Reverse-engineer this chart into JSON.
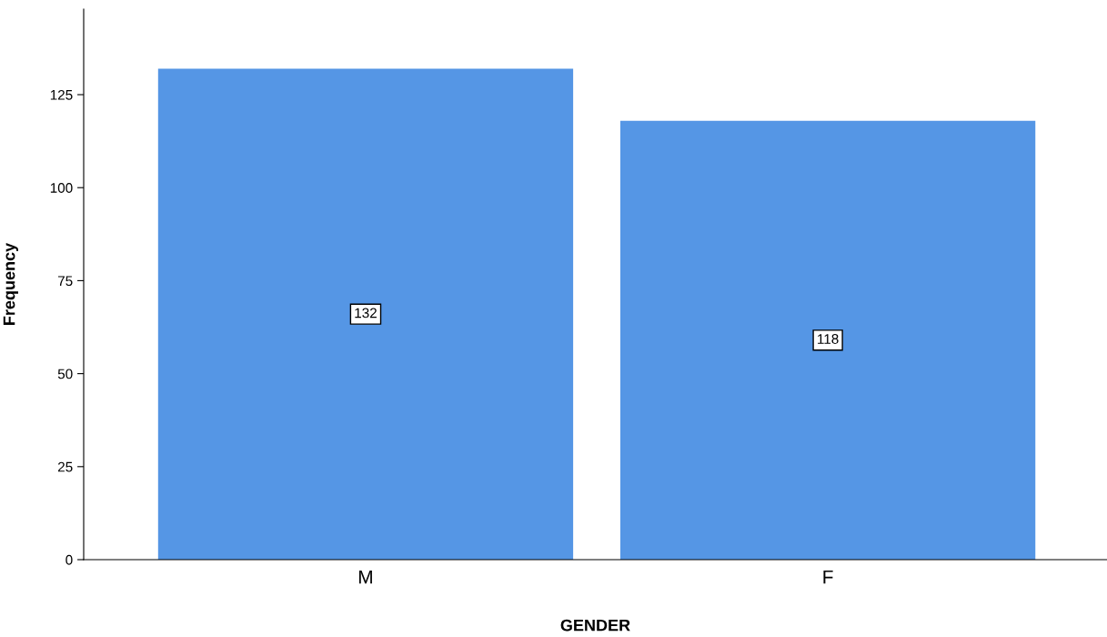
{
  "chart_data": {
    "type": "bar",
    "xlabel": "GENDER",
    "ylabel": "Frequency",
    "categories": [
      "M",
      "F"
    ],
    "values": [
      132,
      118
    ],
    "color": "#5596e5",
    "ylim": [
      0,
      148
    ],
    "yticks": [
      0,
      25,
      50,
      75,
      100,
      125
    ],
    "grid": false,
    "data_labels": true
  }
}
